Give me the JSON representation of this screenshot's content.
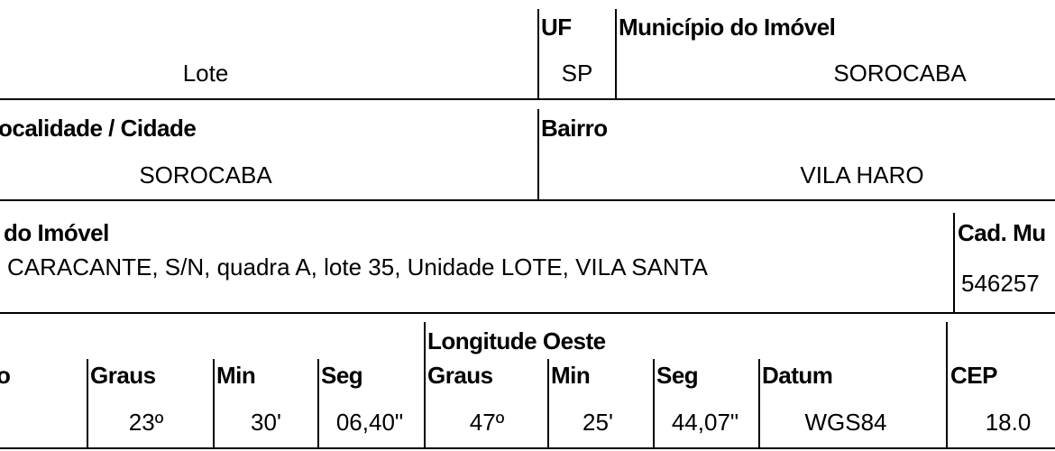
{
  "row1": {
    "c0": {
      "value": "Lote"
    },
    "uf": {
      "label": "UF",
      "value": "SP"
    },
    "municipio": {
      "label": "Município do Imóvel",
      "value": "SOROCABA"
    }
  },
  "row2": {
    "localidade": {
      "label": "ocalidade / Cidade",
      "value": "SOROCABA"
    },
    "bairro": {
      "label": "Bairro",
      "value": "VILA HARO"
    }
  },
  "row3": {
    "endereco": {
      "label": "do Imóvel",
      "value": "CARACANTE, S/N, quadra A, lote 35, Unidade LOTE, VILA SANTA"
    },
    "cad": {
      "label": "Cad. Mu",
      "value": "546257"
    }
  },
  "row4": {
    "longitude_title": "Longitude Oeste",
    "cells": [
      {
        "label": "o",
        "value": null
      },
      {
        "label": "Graus",
        "value": "23º"
      },
      {
        "label": "Min",
        "value": "30'"
      },
      {
        "label": "Seg",
        "value": "06,40\""
      },
      {
        "label": "Graus",
        "value": "47º"
      },
      {
        "label": "Min",
        "value": "25'"
      },
      {
        "label": "Seg",
        "value": "44,07\""
      },
      {
        "label": "Datum",
        "value": "WGS84"
      },
      {
        "label": "CEP",
        "value": "18.0"
      }
    ]
  }
}
